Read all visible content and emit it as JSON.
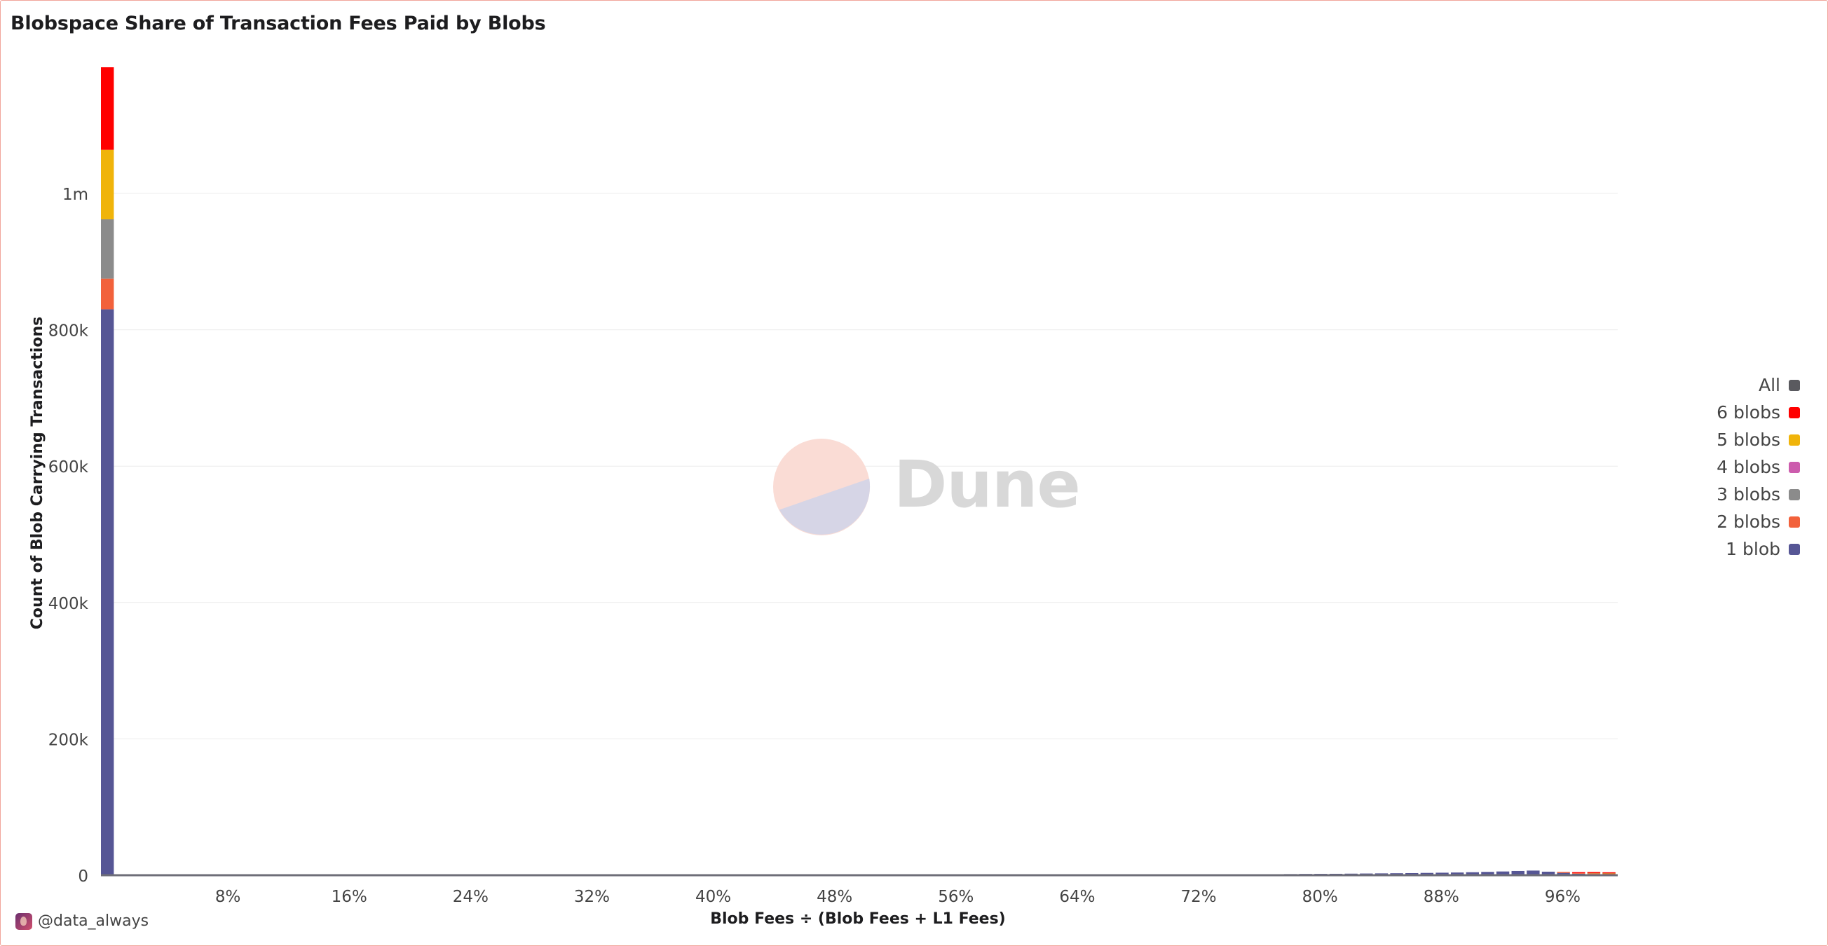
{
  "chart_data": {
    "type": "bar",
    "stacked": true,
    "title": "Blobspace Share of Transaction Fees Paid by Blobs",
    "xlabel": "Blob Fees ÷ (Blob Fees + L1 Fees)",
    "ylabel": "Count of Blob Carrying Transactions",
    "ylim": [
      0,
      1200000
    ],
    "xlim": [
      0,
      100
    ],
    "bin_width": 1,
    "y_ticks": [
      {
        "value": 0,
        "label": "0"
      },
      {
        "value": 200000,
        "label": "200k"
      },
      {
        "value": 400000,
        "label": "400k"
      },
      {
        "value": 600000,
        "label": "600k"
      },
      {
        "value": 800000,
        "label": "800k"
      },
      {
        "value": 1000000,
        "label": "1m"
      }
    ],
    "x_ticks": [
      {
        "value": 8,
        "label": "8%"
      },
      {
        "value": 16,
        "label": "16%"
      },
      {
        "value": 24,
        "label": "24%"
      },
      {
        "value": 32,
        "label": "32%"
      },
      {
        "value": 40,
        "label": "40%"
      },
      {
        "value": 48,
        "label": "48%"
      },
      {
        "value": 56,
        "label": "56%"
      },
      {
        "value": 64,
        "label": "64%"
      },
      {
        "value": 72,
        "label": "72%"
      },
      {
        "value": 80,
        "label": "80%"
      },
      {
        "value": 88,
        "label": "88%"
      },
      {
        "value": 96,
        "label": "96%"
      }
    ],
    "legend_position": "right",
    "series": [
      {
        "name": "1 blob",
        "color": "#565695",
        "points": [
          [
            0,
            830000
          ],
          [
            60,
            800
          ],
          [
            62,
            900
          ],
          [
            64,
            1000
          ],
          [
            66,
            1100
          ],
          [
            68,
            1200
          ],
          [
            70,
            1300
          ],
          [
            72,
            1300
          ],
          [
            74,
            1400
          ],
          [
            76,
            1500
          ],
          [
            78,
            1700
          ],
          [
            79,
            1900
          ],
          [
            80,
            2000
          ],
          [
            81,
            2100
          ],
          [
            82,
            2300
          ],
          [
            83,
            2500
          ],
          [
            84,
            2700
          ],
          [
            85,
            2900
          ],
          [
            86,
            3100
          ],
          [
            87,
            3400
          ],
          [
            88,
            3700
          ],
          [
            89,
            4000
          ],
          [
            90,
            4400
          ],
          [
            91,
            4900
          ],
          [
            92,
            5500
          ],
          [
            93,
            6200
          ],
          [
            94,
            6800
          ],
          [
            95,
            5200
          ],
          [
            96,
            3400
          ],
          [
            97,
            2200
          ],
          [
            98,
            1600
          ],
          [
            99,
            1200
          ]
        ]
      },
      {
        "name": "2 blobs",
        "color": "#f2613b",
        "points": [
          [
            0,
            45000
          ],
          [
            96,
            600
          ],
          [
            97,
            800
          ],
          [
            98,
            1000
          ],
          [
            99,
            900
          ]
        ]
      },
      {
        "name": "3 blobs",
        "color": "#8b8b8b",
        "points": [
          [
            0,
            87000
          ],
          [
            98,
            300
          ],
          [
            99,
            300
          ]
        ]
      },
      {
        "name": "4 blobs",
        "color": "#cc5cad",
        "points": [
          [
            0,
            0
          ]
        ]
      },
      {
        "name": "5 blobs",
        "color": "#f0b40a",
        "points": [
          [
            0,
            102000
          ],
          [
            98,
            300
          ],
          [
            99,
            400
          ]
        ]
      },
      {
        "name": "6 blobs",
        "color": "#ff0000",
        "points": [
          [
            0,
            121000
          ],
          [
            97,
            500
          ],
          [
            98,
            900
          ],
          [
            99,
            1200
          ]
        ]
      }
    ],
    "legend": [
      {
        "label": "All",
        "color": "#5a5a5f"
      },
      {
        "label": "6 blobs",
        "color": "#ff0000"
      },
      {
        "label": "5 blobs",
        "color": "#f0b40a"
      },
      {
        "label": "4 blobs",
        "color": "#cc5cad"
      },
      {
        "label": "3 blobs",
        "color": "#8b8b8b"
      },
      {
        "label": "2 blobs",
        "color": "#f2613b"
      },
      {
        "label": "1 blob",
        "color": "#565695"
      }
    ]
  },
  "watermark": {
    "text": "Dune"
  },
  "credit": {
    "handle": "@data_always"
  }
}
